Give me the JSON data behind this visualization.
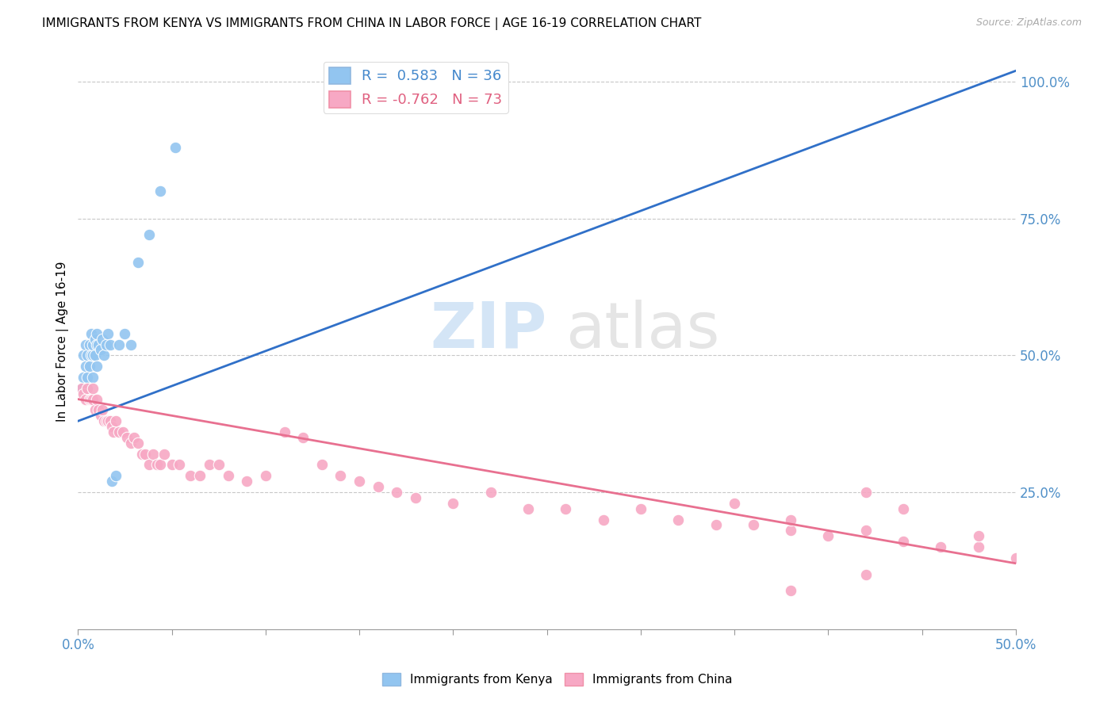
{
  "title": "IMMIGRANTS FROM KENYA VS IMMIGRANTS FROM CHINA IN LABOR FORCE | AGE 16-19 CORRELATION CHART",
  "source": "Source: ZipAtlas.com",
  "ylabel": "In Labor Force | Age 16-19",
  "right_yticks": [
    "100.0%",
    "75.0%",
    "50.0%",
    "25.0%"
  ],
  "right_ytick_vals": [
    1.0,
    0.75,
    0.5,
    0.25
  ],
  "legend_kenya": "R =  0.583   N = 36",
  "legend_china": "R = -0.762   N = 73",
  "legend_label_kenya": "Immigrants from Kenya",
  "legend_label_china": "Immigrants from China",
  "kenya_color": "#92c5f0",
  "china_color": "#f7a8c4",
  "kenya_line_color": "#3070c8",
  "china_line_color": "#e87090",
  "xlim": [
    0.0,
    0.5
  ],
  "ylim": [
    0.0,
    1.05
  ],
  "kenya_x": [
    0.002,
    0.003,
    0.003,
    0.004,
    0.004,
    0.005,
    0.005,
    0.005,
    0.006,
    0.006,
    0.007,
    0.007,
    0.008,
    0.008,
    0.008,
    0.009,
    0.009,
    0.01,
    0.01,
    0.01,
    0.011,
    0.012,
    0.013,
    0.014,
    0.015,
    0.016,
    0.017,
    0.018,
    0.02,
    0.022,
    0.025,
    0.028,
    0.032,
    0.038,
    0.044,
    0.052
  ],
  "kenya_y": [
    0.44,
    0.46,
    0.5,
    0.48,
    0.52,
    0.44,
    0.46,
    0.5,
    0.48,
    0.52,
    0.5,
    0.54,
    0.46,
    0.5,
    0.52,
    0.5,
    0.53,
    0.48,
    0.52,
    0.54,
    0.52,
    0.51,
    0.53,
    0.5,
    0.52,
    0.54,
    0.52,
    0.27,
    0.28,
    0.52,
    0.54,
    0.52,
    0.67,
    0.72,
    0.8,
    0.88
  ],
  "china_x": [
    0.002,
    0.003,
    0.004,
    0.005,
    0.006,
    0.007,
    0.008,
    0.008,
    0.009,
    0.01,
    0.011,
    0.012,
    0.013,
    0.014,
    0.015,
    0.016,
    0.017,
    0.018,
    0.019,
    0.02,
    0.022,
    0.024,
    0.026,
    0.028,
    0.03,
    0.032,
    0.034,
    0.036,
    0.038,
    0.04,
    0.042,
    0.044,
    0.046,
    0.05,
    0.054,
    0.06,
    0.065,
    0.07,
    0.075,
    0.08,
    0.09,
    0.1,
    0.11,
    0.12,
    0.13,
    0.14,
    0.15,
    0.16,
    0.17,
    0.18,
    0.2,
    0.22,
    0.24,
    0.26,
    0.28,
    0.3,
    0.32,
    0.34,
    0.36,
    0.38,
    0.4,
    0.42,
    0.44,
    0.46,
    0.48,
    0.5,
    0.35,
    0.38,
    0.42,
    0.44,
    0.38,
    0.42,
    0.48
  ],
  "china_y": [
    0.44,
    0.43,
    0.42,
    0.44,
    0.42,
    0.42,
    0.42,
    0.44,
    0.4,
    0.42,
    0.4,
    0.39,
    0.4,
    0.38,
    0.38,
    0.38,
    0.38,
    0.37,
    0.36,
    0.38,
    0.36,
    0.36,
    0.35,
    0.34,
    0.35,
    0.34,
    0.32,
    0.32,
    0.3,
    0.32,
    0.3,
    0.3,
    0.32,
    0.3,
    0.3,
    0.28,
    0.28,
    0.3,
    0.3,
    0.28,
    0.27,
    0.28,
    0.36,
    0.35,
    0.3,
    0.28,
    0.27,
    0.26,
    0.25,
    0.24,
    0.23,
    0.25,
    0.22,
    0.22,
    0.2,
    0.22,
    0.2,
    0.19,
    0.19,
    0.18,
    0.17,
    0.18,
    0.16,
    0.15,
    0.15,
    0.13,
    0.23,
    0.2,
    0.25,
    0.22,
    0.07,
    0.1,
    0.17
  ],
  "kenya_line_x": [
    0.0,
    0.5
  ],
  "kenya_line_y": [
    0.38,
    1.02
  ],
  "china_line_x": [
    0.0,
    0.5
  ],
  "china_line_y": [
    0.42,
    0.12
  ]
}
